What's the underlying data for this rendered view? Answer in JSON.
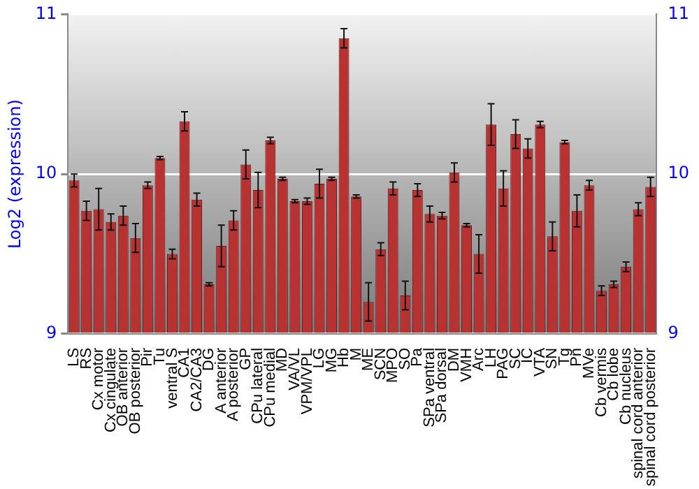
{
  "chart_data": {
    "type": "bar",
    "ylabel": "Log2 (expression)",
    "categories": [
      "LS",
      "RS",
      "Cx motor",
      "Cx cingulate",
      "OB anterior",
      "OB posterior",
      "Pir",
      "Tu",
      "ventral S",
      "CA1",
      "CA2/CA3",
      "DG",
      "A anterior",
      "A posterior",
      "GP",
      "CPu lateral",
      "CPu medial",
      "MD",
      "VA/VL",
      "VPM/VPL",
      "LG",
      "MG",
      "Hb",
      "M",
      "ME",
      "SCN",
      "MPO",
      "SO",
      "Pa",
      "SPa ventral",
      "SPa dorsal",
      "DM",
      "VMH",
      "Arc",
      "LH",
      "PAG",
      "SC",
      "IC",
      "VTA",
      "SN",
      "Tg",
      "Pn",
      "MVe",
      "Cb vermis",
      "Cb lobe",
      "Cb nucleus",
      "spinal cord anterior",
      "spinal cord posterior"
    ],
    "values": [
      9.96,
      9.77,
      9.78,
      9.7,
      9.74,
      9.6,
      9.93,
      10.1,
      9.5,
      10.33,
      9.84,
      9.31,
      9.55,
      9.71,
      10.06,
      9.9,
      10.21,
      9.97,
      9.83,
      9.83,
      9.94,
      9.97,
      10.85,
      9.86,
      9.2,
      9.53,
      9.91,
      9.24,
      9.9,
      9.75,
      9.74,
      10.01,
      9.68,
      9.5,
      10.31,
      9.91,
      10.25,
      10.16,
      10.31,
      9.61,
      10.2,
      9.77,
      9.93,
      9.27,
      9.31,
      9.42,
      9.78,
      9.92
    ],
    "errors": [
      0.04,
      0.06,
      0.13,
      0.05,
      0.06,
      0.09,
      0.02,
      0.01,
      0.03,
      0.06,
      0.04,
      0.01,
      0.13,
      0.06,
      0.09,
      0.11,
      0.02,
      0.01,
      0.01,
      0.02,
      0.09,
      0.01,
      0.06,
      0.01,
      0.12,
      0.04,
      0.04,
      0.09,
      0.04,
      0.05,
      0.02,
      0.06,
      0.01,
      0.12,
      0.13,
      0.11,
      0.09,
      0.06,
      0.02,
      0.09,
      0.01,
      0.1,
      0.03,
      0.03,
      0.02,
      0.03,
      0.04,
      0.06
    ],
    "color": "#b83232",
    "ylim": [
      9,
      11
    ],
    "yticks": [
      9,
      10,
      11
    ],
    "y2lim": [
      9,
      11
    ],
    "y2ticks": [
      9,
      10,
      11
    ],
    "grid": "y"
  }
}
